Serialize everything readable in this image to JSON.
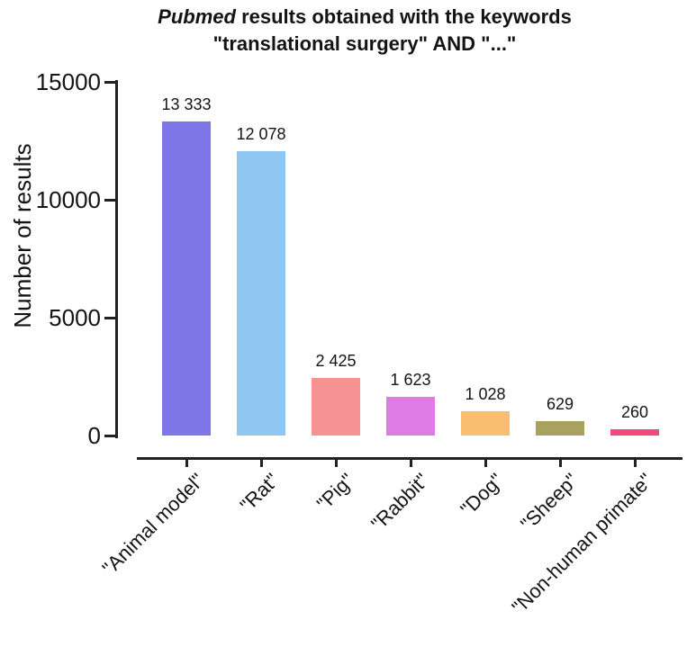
{
  "chart_data": {
    "type": "bar",
    "title_word_italic": "Pubmed",
    "title_line1_rest": " results obtained with the keywords",
    "title_line2": "\"translational surgery\" AND \"...\"",
    "ylabel": "Number of results",
    "categories": [
      "\"Animal model\"",
      "\"Rat\"",
      "\"Pig\"",
      "\"Rabbit\"",
      "\"Dog\"",
      "\"Sheep\"",
      "\"Non-human primate\""
    ],
    "values": [
      13333,
      12078,
      2425,
      1623,
      1028,
      629,
      260
    ],
    "value_labels": [
      "13 333",
      "12 078",
      "2 425",
      "1 623",
      "1 028",
      "629",
      "260"
    ],
    "bar_colors": [
      "#7d75e8",
      "#90c6f2",
      "#f79292",
      "#de7ce4",
      "#f9be72",
      "#a9a25e",
      "#ef4c7c"
    ],
    "yticks": [
      0,
      5000,
      10000,
      15000
    ],
    "ytick_labels": [
      "0",
      "5000",
      "10000",
      "15000"
    ],
    "ylim": [
      0,
      15000
    ],
    "grid": false,
    "legend": "none",
    "background_color": "#ffffff",
    "axis_color": "#222222"
  }
}
